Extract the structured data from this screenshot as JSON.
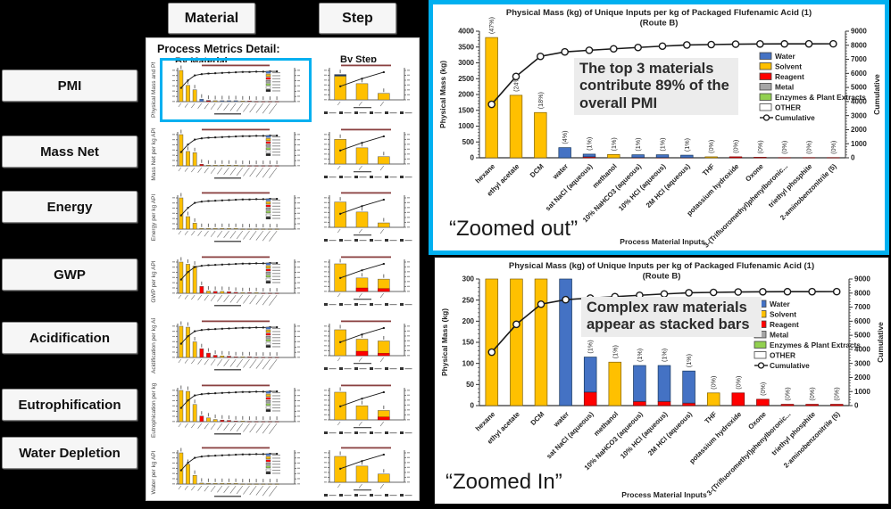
{
  "header": {
    "material_label": "Material",
    "step_label": "Step"
  },
  "sidebar": {
    "items": [
      "PMI",
      "Mass Net",
      "Energy",
      "GWP",
      "Acidification",
      "Eutrophification",
      "Water Depletion"
    ]
  },
  "panel": {
    "title": "Process Metrics Detail:",
    "col_material": "By Material",
    "col_step": "By Step",
    "mini_cum_material": [
      44,
      68,
      84,
      88,
      90,
      91,
      92,
      93,
      94,
      95,
      95,
      96,
      96,
      97,
      97
    ],
    "mini_cum_step": [
      46,
      72,
      94
    ],
    "rows": [
      {
        "axis_label": "Physical Mass and PMI p...",
        "highlight": true,
        "material": {
          "bars": [
            [
              100,
              "s"
            ],
            [
              52,
              "s"
            ],
            [
              38,
              "s"
            ],
            [
              8,
              "w"
            ],
            [
              4,
              "w",
              2
            ],
            [
              3,
              "s"
            ],
            [
              3,
              "w"
            ],
            [
              3,
              "w"
            ],
            [
              3,
              "w"
            ],
            [
              2,
              "s"
            ],
            [
              2,
              "r"
            ],
            [
              1,
              "r"
            ],
            [
              1,
              "r"
            ],
            [
              1,
              "r"
            ],
            [
              1,
              "r"
            ]
          ]
        },
        "step": {
          "bars": [
            [
              86,
              "s",
              0,
              6
            ],
            [
              55,
              "s"
            ],
            [
              22,
              "s"
            ]
          ]
        }
      },
      {
        "axis_label": "Mass Net  per kg API",
        "highlight": false,
        "material": {
          "bars": [
            [
              100,
              "s"
            ],
            [
              46,
              "s"
            ],
            [
              42,
              "s"
            ],
            [
              5,
              "r"
            ],
            [
              2,
              "s"
            ],
            [
              2,
              "s"
            ],
            [
              2,
              "s"
            ],
            [
              2,
              "s"
            ],
            [
              2,
              "s"
            ],
            [
              1,
              "s"
            ],
            [
              1,
              "r"
            ],
            [
              1,
              "r"
            ],
            [
              1,
              "r"
            ],
            [
              1,
              "r"
            ],
            [
              1,
              "r"
            ]
          ]
        },
        "step": {
          "bars": [
            [
              84,
              "s"
            ],
            [
              55,
              "s"
            ],
            [
              25,
              "s"
            ]
          ]
        }
      },
      {
        "axis_label": "Energy  per kg API",
        "highlight": false,
        "material": {
          "bars": [
            [
              100,
              "s"
            ],
            [
              40,
              "s"
            ],
            [
              19,
              "s"
            ],
            [
              2,
              "s"
            ],
            [
              2,
              "s"
            ],
            [
              2,
              "s"
            ],
            [
              2,
              "s"
            ],
            [
              2,
              "s"
            ],
            [
              2,
              "s"
            ],
            [
              1,
              "s"
            ],
            [
              1,
              "s"
            ],
            [
              1,
              "s"
            ],
            [
              1,
              "s"
            ],
            [
              1,
              "s"
            ],
            [
              1,
              "s"
            ]
          ]
        },
        "step": {
          "bars": [
            [
              86,
              "s"
            ],
            [
              52,
              "s"
            ],
            [
              15,
              "s"
            ]
          ]
        }
      },
      {
        "axis_label": "GWP  per kg API",
        "highlight": false,
        "material": {
          "bars": [
            [
              100,
              "s"
            ],
            [
              93,
              "s"
            ],
            [
              87,
              "s"
            ],
            [
              22,
              "r"
            ],
            [
              7,
              "s"
            ],
            [
              6,
              "r"
            ],
            [
              6,
              "s"
            ],
            [
              5,
              "r"
            ],
            [
              3,
              "r"
            ],
            [
              2,
              "s"
            ],
            [
              2,
              "r"
            ],
            [
              2,
              "s"
            ],
            [
              1,
              "r"
            ],
            [
              1,
              "r"
            ],
            [
              1,
              "r"
            ]
          ]
        },
        "step": {
          "bars": [
            [
              94,
              "s"
            ],
            [
              46,
              "s",
              12
            ],
            [
              42,
              "s",
              10
            ]
          ]
        }
      },
      {
        "axis_label": "Acidification per kg API",
        "highlight": false,
        "material": {
          "bars": [
            [
              100,
              "s"
            ],
            [
              97,
              "s"
            ],
            [
              50,
              "s"
            ],
            [
              28,
              "r"
            ],
            [
              14,
              "r"
            ],
            [
              7,
              "r"
            ],
            [
              5,
              "s"
            ],
            [
              4,
              "r"
            ],
            [
              2,
              "r"
            ],
            [
              2,
              "s"
            ],
            [
              2,
              "r"
            ],
            [
              1,
              "r"
            ],
            [
              1,
              "r"
            ],
            [
              1,
              "r"
            ],
            [
              1,
              "r"
            ]
          ]
        },
        "step": {
          "bars": [
            [
              88,
              "s"
            ],
            [
              56,
              "s",
              15
            ],
            [
              50,
              "s",
              8
            ]
          ]
        }
      },
      {
        "axis_label": "Eutrophication per kg API",
        "highlight": false,
        "material": {
          "bars": [
            [
              100,
              "s"
            ],
            [
              97,
              "s"
            ],
            [
              55,
              "s"
            ],
            [
              18,
              "r"
            ],
            [
              12,
              "s"
            ],
            [
              7,
              "s"
            ],
            [
              5,
              "r"
            ],
            [
              4,
              "r"
            ],
            [
              2,
              "r"
            ],
            [
              2,
              "s"
            ],
            [
              1,
              "r"
            ],
            [
              1,
              "r"
            ],
            [
              1,
              "r"
            ],
            [
              1,
              "r"
            ],
            [
              1,
              "r"
            ]
          ]
        },
        "step": {
          "bars": [
            [
              94,
              "s"
            ],
            [
              48,
              "s"
            ],
            [
              32,
              "s",
              10
            ]
          ]
        }
      },
      {
        "axis_label": "Water per kg API",
        "highlight": false,
        "material": {
          "bars": [
            [
              100,
              "s"
            ],
            [
              63,
              "s"
            ],
            [
              28,
              "s"
            ],
            [
              3,
              "s"
            ],
            [
              2,
              "s"
            ],
            [
              2,
              "s"
            ],
            [
              2,
              "s"
            ],
            [
              2,
              "s"
            ],
            [
              2,
              "s"
            ],
            [
              1,
              "s"
            ],
            [
              1,
              "s"
            ],
            [
              1,
              "s"
            ],
            [
              1,
              "s"
            ],
            [
              1,
              "s"
            ],
            [
              1,
              "s"
            ]
          ]
        },
        "step": {
          "bars": [
            [
              88,
              "s"
            ],
            [
              55,
              "s"
            ],
            [
              28,
              "s"
            ]
          ]
        }
      }
    ]
  },
  "colors": {
    "water": "#4472C4",
    "solvent": "#FFC000",
    "reagent": "#FF0000",
    "metal": "#A6A6A6",
    "enzymes": "#92D050",
    "other": "#FFFFFF",
    "line": "#1a1a1a",
    "highlight": "#00B0F0"
  },
  "chart_data": [
    {
      "id": "zoomed_out",
      "type": "bar",
      "subtype": "pareto stacked bar + cumulative line",
      "title": "Physical Mass (kg) of Unique Inputs per kg of Packaged Flufenamic Acid (1)",
      "subtitle": "(Route B)",
      "xlabel": "Process Material Inputs",
      "ylabel": "Physical Mass (kg)",
      "y2label": "Cumulative",
      "ylim": [
        0,
        4000
      ],
      "ytick": 500,
      "y2lim": [
        0,
        9000
      ],
      "y2tick": 1000,
      "grid": false,
      "legend_position": "inside-right",
      "categories": [
        "hexane",
        "ethyl acetate",
        "DCM",
        "water",
        "sat NaCl (aqueous)",
        "methanol",
        "10% NaHCO3 (aqueous)",
        "10% HCl (aqueous)",
        "2M HCl (aqueous)",
        "THF",
        "potassium hydroxide",
        "Oxone",
        "3-(Trifluoromethyl)phenylboronic...",
        "triethyl phosphite",
        "2-aminobenzonitrile (5)"
      ],
      "bars": [
        [
          [
            "solvent",
            3800
          ]
        ],
        [
          [
            "solvent",
            1975
          ]
        ],
        [
          [
            "solvent",
            1430
          ]
        ],
        [
          [
            "water",
            320
          ]
        ],
        [
          [
            "reagent",
            32
          ],
          [
            "water",
            83
          ]
        ],
        [
          [
            "solvent",
            103
          ]
        ],
        [
          [
            "reagent",
            10
          ],
          [
            "water",
            85
          ]
        ],
        [
          [
            "reagent",
            10
          ],
          [
            "water",
            85
          ]
        ],
        [
          [
            "reagent",
            6
          ],
          [
            "water",
            76
          ]
        ],
        [
          [
            "solvent",
            30
          ]
        ],
        [
          [
            "reagent",
            30
          ]
        ],
        [
          [
            "reagent",
            15
          ]
        ],
        [
          [
            "reagent",
            3
          ]
        ],
        [
          [
            "reagent",
            3
          ]
        ],
        [
          [
            "reagent",
            3
          ]
        ]
      ],
      "pct_labels": [
        "(47%)",
        "(24%)",
        "(18%)",
        "(4%)",
        "(1%)",
        "(1%)",
        "(1%)",
        "(1%)",
        "(1%)",
        "(0%)",
        "(0%)",
        "(0%)",
        "(0%)",
        "(0%)",
        "(0%)"
      ],
      "cumulative": [
        3800,
        5780,
        7210,
        7530,
        7645,
        7748,
        7843,
        7938,
        8020,
        8050,
        8080,
        8095,
        8098,
        8101,
        8104
      ],
      "legend": [
        {
          "label": "Water",
          "key": "water"
        },
        {
          "label": "Solvent",
          "key": "solvent"
        },
        {
          "label": "Reagent",
          "key": "reagent"
        },
        {
          "label": "Metal",
          "key": "metal"
        },
        {
          "label": "Enzymes & Plant Extracts",
          "key": "enzymes"
        },
        {
          "label": "OTHER",
          "key": "other"
        },
        {
          "label": "Cumulative",
          "key": "line"
        }
      ],
      "annotation": "The top 3 materials contribute 89% of the overall PMI",
      "caption": "“Zoomed out”"
    },
    {
      "id": "zoomed_in",
      "type": "bar",
      "subtype": "pareto stacked bar + cumulative line (y-axis zoomed, tall bars clipped)",
      "title": "Physical Mass (kg) of Unique Inputs per kg of Packaged Flufenamic Acid (1)",
      "subtitle": "(Route B)",
      "xlabel": "Process Material Inputs",
      "ylabel": "Physical Mass (kg)",
      "y2label": "Cumulative",
      "ylim": [
        0,
        300
      ],
      "ytick": 50,
      "y2lim": [
        0,
        9000
      ],
      "y2tick": 1000,
      "grid": false,
      "legend_position": "inside-right",
      "categories": [
        "hexane",
        "ethyl acetate",
        "DCM",
        "water",
        "sat NaCl (aqueous)",
        "methanol",
        "10% NaHCO3 (aqueous)",
        "10% HCl (aqueous)",
        "2M HCl (aqueous)",
        "THF",
        "potassium hydroxide",
        "Oxone",
        "3-(Trifluoromethyl)phenylboronic...",
        "triethyl phosphite",
        "2-aminobenzonitrile (5)"
      ],
      "bars": [
        [
          [
            "solvent",
            3800
          ]
        ],
        [
          [
            "solvent",
            1975
          ]
        ],
        [
          [
            "solvent",
            1430
          ]
        ],
        [
          [
            "water",
            320
          ]
        ],
        [
          [
            "reagent",
            32
          ],
          [
            "water",
            83
          ]
        ],
        [
          [
            "solvent",
            103
          ]
        ],
        [
          [
            "reagent",
            10
          ],
          [
            "water",
            85
          ]
        ],
        [
          [
            "reagent",
            10
          ],
          [
            "water",
            85
          ]
        ],
        [
          [
            "reagent",
            6
          ],
          [
            "water",
            76
          ]
        ],
        [
          [
            "solvent",
            30
          ]
        ],
        [
          [
            "reagent",
            30
          ]
        ],
        [
          [
            "reagent",
            15
          ]
        ],
        [
          [
            "reagent",
            3
          ]
        ],
        [
          [
            "reagent",
            3
          ]
        ],
        [
          [
            "reagent",
            3
          ]
        ]
      ],
      "pct_labels": [
        null,
        null,
        null,
        null,
        "(1%)",
        "(1%)",
        "(1%)",
        "(1%)",
        "(1%)",
        "(0%)",
        "(0%)",
        "(0%)",
        "(0%)",
        "(0%)",
        "(0%)"
      ],
      "cumulative": [
        3800,
        5780,
        7210,
        7530,
        7645,
        7748,
        7843,
        7938,
        8020,
        8050,
        8080,
        8095,
        8098,
        8101,
        8104
      ],
      "legend": [
        {
          "label": "Water",
          "key": "water"
        },
        {
          "label": "Solvent",
          "key": "solvent"
        },
        {
          "label": "Reagent",
          "key": "reagent"
        },
        {
          "label": "Metal",
          "key": "metal"
        },
        {
          "label": "Enzymes & Plant Extracts",
          "key": "enzymes"
        },
        {
          "label": "OTHER",
          "key": "other"
        },
        {
          "label": "Cumulative",
          "key": "line"
        }
      ],
      "annotation": "Complex raw materials appear as stacked bars",
      "caption": "“Zoomed In”"
    }
  ]
}
